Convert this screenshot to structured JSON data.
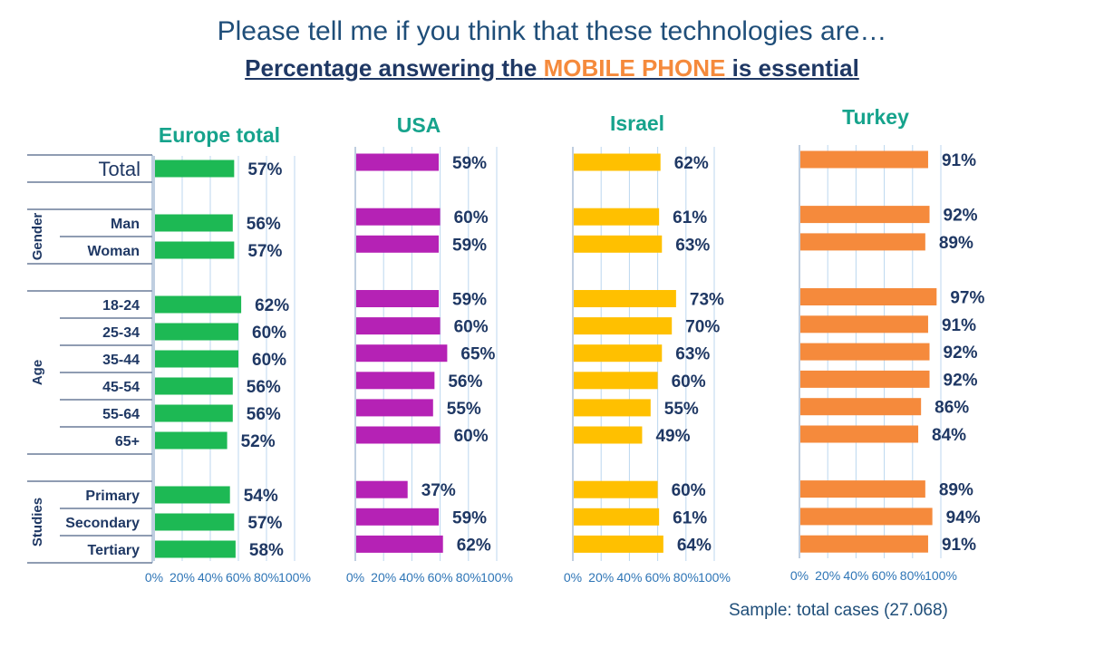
{
  "header": {
    "subtitle": "Please tell me if you think that these technologies are…",
    "title_pre": "Percentage answering the ",
    "title_highlight": "MOBILE PHONE",
    "title_post": " is essential"
  },
  "footer": {
    "sample_note": "Sample: total cases (27.068)"
  },
  "colors": {
    "Europe total": "#1db954",
    "USA": "#b522b5",
    "Israel": "#ffc000",
    "Turkey": "#f58a3c",
    "panel_title": "#16a38c",
    "label": "#1f3864"
  },
  "chart_data": {
    "type": "bar",
    "orientation": "horizontal",
    "value_unit": "%",
    "xlim": [
      0,
      100
    ],
    "x_ticks": [
      "0%",
      "20%",
      "40%",
      "60%",
      "80%",
      "100%"
    ],
    "groups": [
      {
        "name": "",
        "categories": [
          "Total"
        ]
      },
      {
        "name": "Gender",
        "categories": [
          "Man",
          "Woman"
        ]
      },
      {
        "name": "Age",
        "categories": [
          "18-24",
          "25-34",
          "35-44",
          "45-54",
          "55-64",
          "65+"
        ]
      },
      {
        "name": "Studies",
        "categories": [
          "Primary",
          "Secondary",
          "Tertiary"
        ]
      }
    ],
    "categories": [
      "Total",
      "Man",
      "Woman",
      "18-24",
      "25-34",
      "35-44",
      "45-54",
      "55-64",
      "65+",
      "Primary",
      "Secondary",
      "Tertiary"
    ],
    "series": [
      {
        "name": "Europe total",
        "values": [
          57,
          56,
          57,
          62,
          60,
          60,
          56,
          56,
          52,
          54,
          57,
          58
        ]
      },
      {
        "name": "USA",
        "values": [
          59,
          60,
          59,
          59,
          60,
          65,
          56,
          55,
          60,
          37,
          59,
          62
        ]
      },
      {
        "name": "Israel",
        "values": [
          62,
          61,
          63,
          73,
          70,
          63,
          60,
          55,
          49,
          60,
          61,
          64
        ]
      },
      {
        "name": "Turkey",
        "values": [
          91,
          92,
          89,
          97,
          91,
          92,
          92,
          86,
          84,
          89,
          94,
          91
        ]
      }
    ]
  }
}
